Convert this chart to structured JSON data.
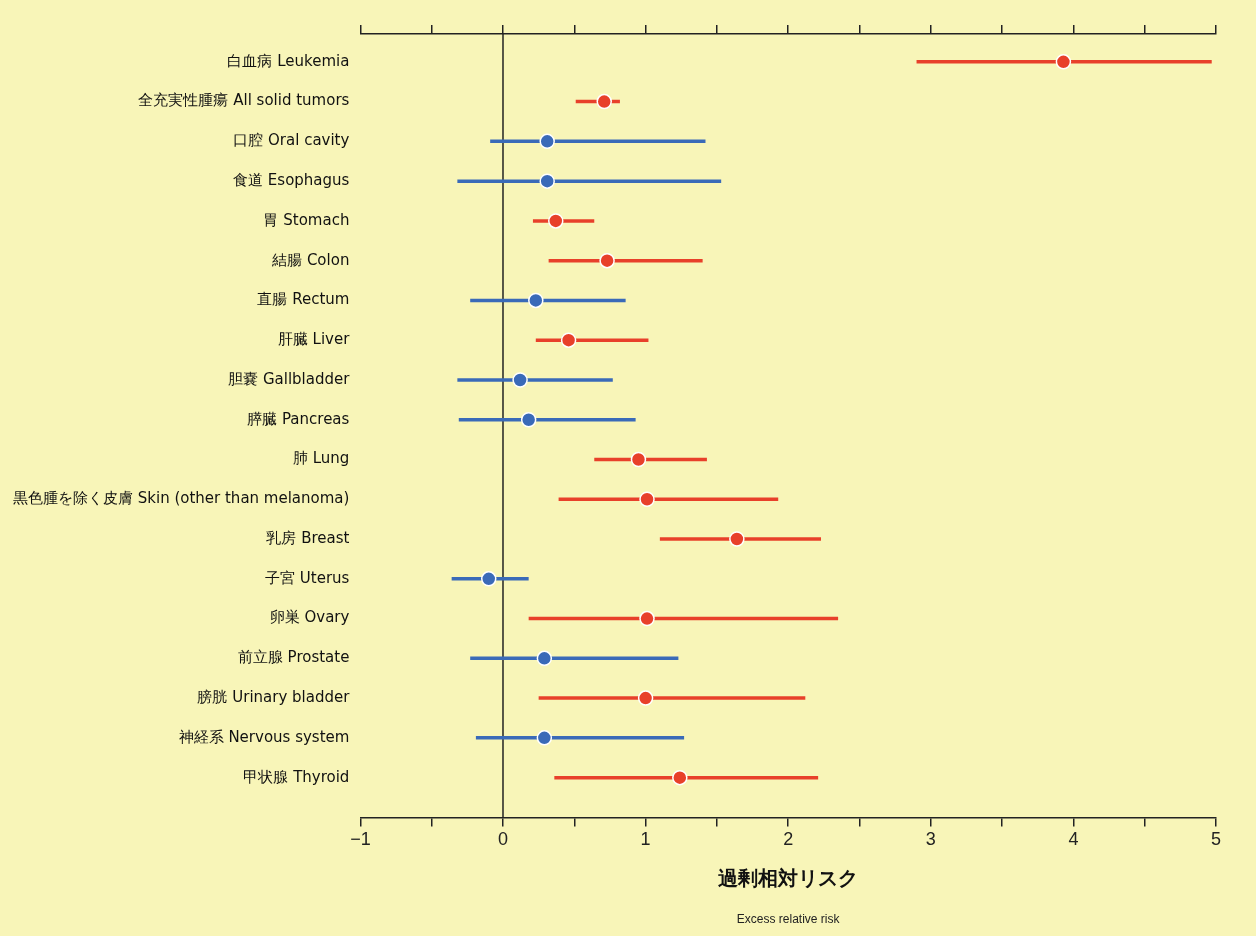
{
  "chart_data": {
    "type": "scatter",
    "orientation": "horizontal",
    "categories": [
      "白血病 Leukemia",
      "全充実性腫瘍 All solid tumors",
      "口腔 Oral cavity",
      "食道 Esophagus",
      "胃 Stomach",
      "結腸 Colon",
      "直腸 Rectum",
      "肝臓 Liver",
      "胆嚢 Gallbladder",
      "膵臓 Pancreas",
      "肺 Lung",
      "黒色腫を除く皮膚 Skin (other than melanoma)",
      "乳房 Breast",
      "子宮 Uterus",
      "卵巣 Ovary",
      "前立腺 Prostate",
      "膀胱 Urinary bladder",
      "神経系 Nervous system",
      "甲状腺 Thyroid"
    ],
    "values": [
      3.93,
      0.71,
      0.31,
      0.31,
      0.37,
      0.73,
      0.23,
      0.46,
      0.12,
      0.18,
      0.95,
      1.01,
      1.64,
      -0.1,
      1.01,
      0.29,
      1.0,
      0.29,
      1.24
    ],
    "errors": [
      [
        2.9,
        4.97
      ],
      [
        0.51,
        0.82
      ],
      [
        -0.09,
        1.42
      ],
      [
        -0.32,
        1.53
      ],
      [
        0.21,
        0.64
      ],
      [
        0.32,
        1.4
      ],
      [
        -0.23,
        0.86
      ],
      [
        0.23,
        1.02
      ],
      [
        -0.32,
        0.77
      ],
      [
        -0.31,
        0.93
      ],
      [
        0.64,
        1.43
      ],
      [
        0.39,
        1.93
      ],
      [
        1.1,
        2.23
      ],
      [
        -0.36,
        0.18
      ],
      [
        0.18,
        2.35
      ],
      [
        -0.23,
        1.23
      ],
      [
        0.25,
        2.12
      ],
      [
        -0.19,
        1.27
      ],
      [
        0.36,
        2.21
      ]
    ],
    "colors": [
      "#e8402a",
      "#e8402a",
      "#3a6ab8",
      "#3a6ab8",
      "#e8402a",
      "#e8402a",
      "#3a6ab8",
      "#e8402a",
      "#3a6ab8",
      "#3a6ab8",
      "#e8402a",
      "#e8402a",
      "#e8402a",
      "#3a6ab8",
      "#e8402a",
      "#3a6ab8",
      "#e8402a",
      "#3a6ab8",
      "#e8402a"
    ],
    "marker": "circle",
    "xlim": [
      -1,
      5
    ],
    "xticks": [
      {
        "value": -1,
        "label": "−1"
      },
      {
        "value": -0.5,
        "label": null
      },
      0,
      {
        "value": 0.5,
        "label": null
      },
      1,
      {
        "value": 1.5,
        "label": null
      },
      2,
      {
        "value": 2.5,
        "label": null
      },
      3,
      {
        "value": 3.5,
        "label": null
      },
      4,
      {
        "value": 4.5,
        "label": null
      },
      5
    ],
    "xlabel": "過剰相対リスク",
    "annotations": [
      "Excess relative risk"
    ],
    "ref_lines": [
      {
        "axis": "x",
        "value": 0,
        "color": "#222222"
      }
    ],
    "grid": false,
    "legend": false
  }
}
